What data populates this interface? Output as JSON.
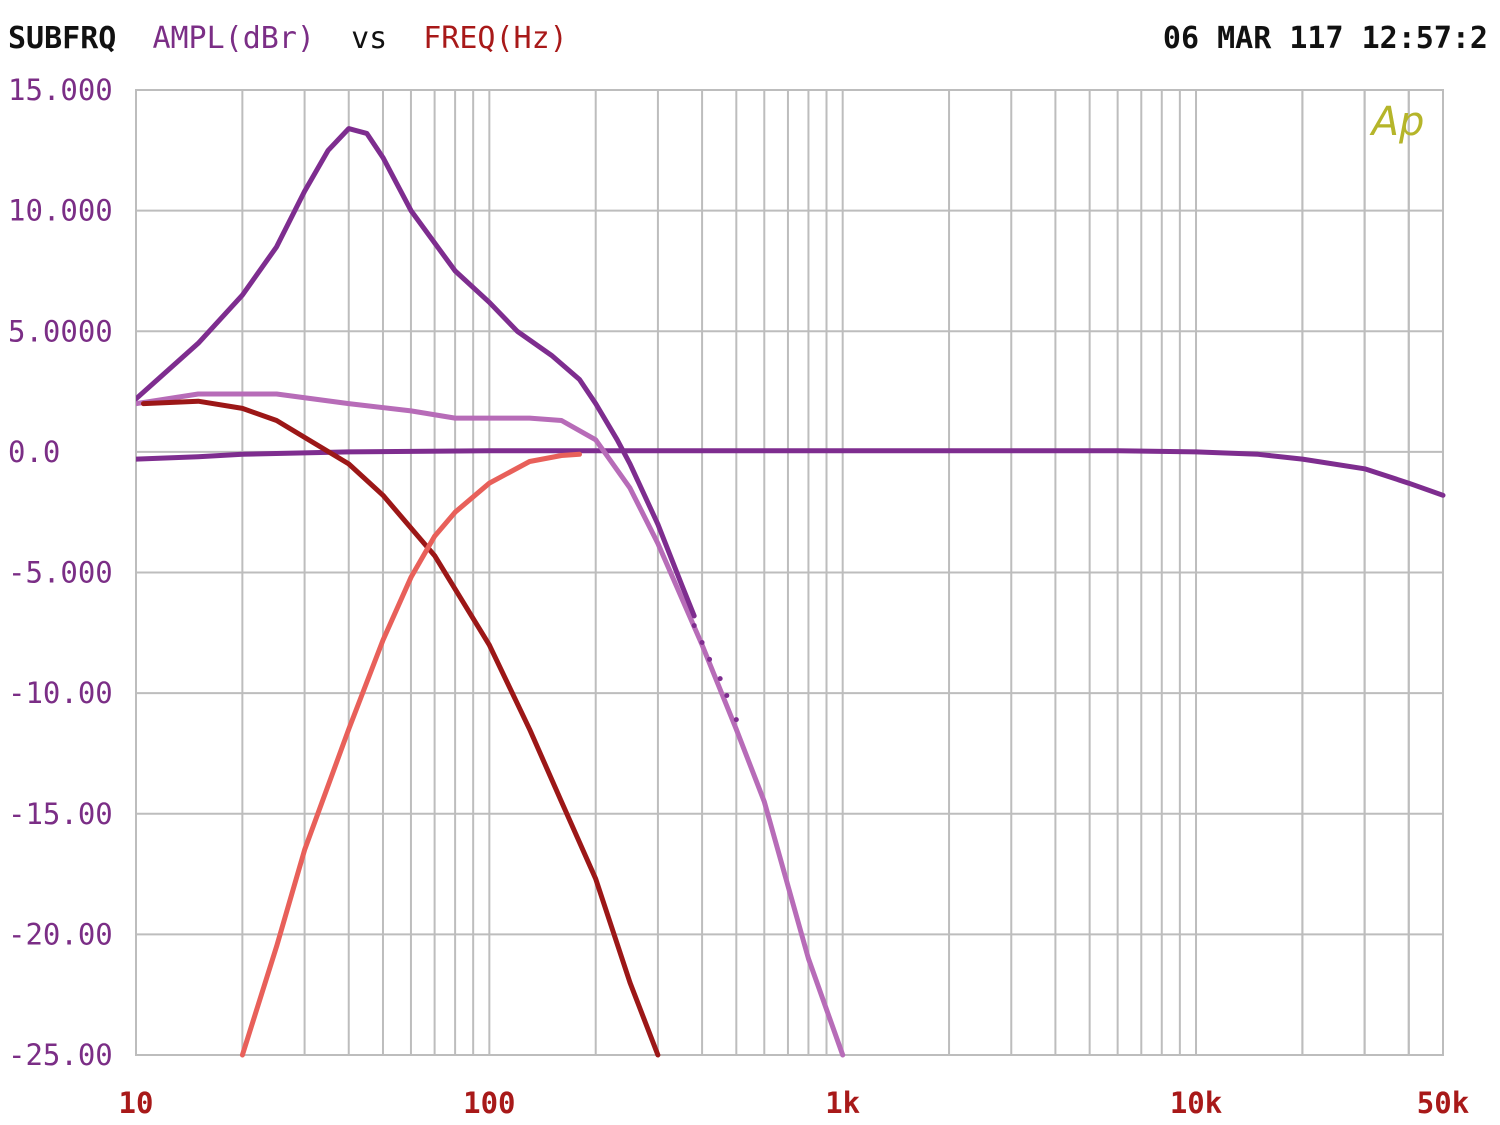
{
  "header": {
    "mode": "SUBFRQ",
    "y_label": "AMPL(dBr)",
    "vs": "vs",
    "x_label": "FREQ(Hz)",
    "timestamp": "06 MAR 117 12:57:2"
  },
  "logo": {
    "text": "Ap",
    "color": "#b5b52a"
  },
  "colors": {
    "background": "#ffffff",
    "grid": "#bdbdbd",
    "axis_text_y": "#7b2e86",
    "axis_text_x": "#a81919",
    "header_text": "#111111"
  },
  "chart_data": {
    "type": "line",
    "x_scale": "log",
    "xlim": [
      10,
      50000
    ],
    "ylim": [
      -25,
      15
    ],
    "grid": true,
    "x_tick_labels": [
      {
        "value": 10,
        "label": "10"
      },
      {
        "value": 100,
        "label": "100"
      },
      {
        "value": 1000,
        "label": "1k"
      },
      {
        "value": 10000,
        "label": "10k"
      },
      {
        "value": 50000,
        "label": "50k"
      }
    ],
    "y_tick_labels": [
      {
        "value": 15,
        "label": "15.000"
      },
      {
        "value": 10,
        "label": "10.000"
      },
      {
        "value": 5,
        "label": "5.0000"
      },
      {
        "value": 0,
        "label": "0.0"
      },
      {
        "value": -5,
        "label": "-5.000"
      },
      {
        "value": -10,
        "label": "-10.00"
      },
      {
        "value": -15,
        "label": "-15.00"
      },
      {
        "value": -20,
        "label": "-20.00"
      },
      {
        "value": -25,
        "label": "-25.00"
      }
    ],
    "series": [
      {
        "color": "#7e2d8f",
        "width": 5,
        "points": [
          [
            10,
            -0.3
          ],
          [
            15,
            -0.2
          ],
          [
            20,
            -0.1
          ],
          [
            40,
            0
          ],
          [
            100,
            0.05
          ],
          [
            200,
            0.05
          ],
          [
            1000,
            0.05
          ],
          [
            3000,
            0.05
          ],
          [
            6000,
            0.05
          ],
          [
            10000,
            0
          ],
          [
            15000,
            -0.1
          ],
          [
            20000,
            -0.3
          ],
          [
            30000,
            -0.7
          ],
          [
            40000,
            -1.3
          ],
          [
            50000,
            -1.8
          ]
        ]
      },
      {
        "color": "#b76cb8",
        "width": 5,
        "points": [
          [
            10,
            2
          ],
          [
            15,
            2.4
          ],
          [
            25,
            2.4
          ],
          [
            40,
            2
          ],
          [
            60,
            1.7
          ],
          [
            80,
            1.4
          ],
          [
            100,
            1.4
          ],
          [
            130,
            1.4
          ],
          [
            160,
            1.3
          ],
          [
            200,
            0.5
          ],
          [
            250,
            -1.5
          ],
          [
            300,
            -3.8
          ],
          [
            400,
            -8
          ],
          [
            500,
            -11.5
          ],
          [
            600,
            -14.5
          ],
          [
            800,
            -21
          ],
          [
            1000,
            -25
          ]
        ]
      },
      {
        "color": "#7e2d8f",
        "width": 5,
        "points": [
          [
            10,
            2.2
          ],
          [
            15,
            4.5
          ],
          [
            20,
            6.5
          ],
          [
            25,
            8.5
          ],
          [
            30,
            10.8
          ],
          [
            35,
            12.5
          ],
          [
            40,
            13.4
          ],
          [
            45,
            13.2
          ],
          [
            50,
            12.2
          ],
          [
            60,
            10
          ],
          [
            80,
            7.5
          ],
          [
            100,
            6.2
          ],
          [
            120,
            5
          ],
          [
            150,
            4
          ],
          [
            180,
            3
          ],
          [
            200,
            2
          ],
          [
            230,
            0.5
          ],
          [
            250,
            -0.5
          ],
          [
            300,
            -3
          ],
          [
            350,
            -5.5
          ],
          [
            380,
            -6.8
          ]
        ]
      },
      {
        "color": "#9c1717",
        "width": 5,
        "points": [
          [
            10.5,
            2
          ],
          [
            15,
            2.1
          ],
          [
            20,
            1.8
          ],
          [
            25,
            1.3
          ],
          [
            30,
            0.6
          ],
          [
            40,
            -0.5
          ],
          [
            50,
            -1.8
          ],
          [
            70,
            -4.3
          ],
          [
            100,
            -8
          ],
          [
            130,
            -11.5
          ],
          [
            160,
            -14.5
          ],
          [
            200,
            -17.7
          ],
          [
            250,
            -22
          ],
          [
            300,
            -25
          ]
        ]
      },
      {
        "color": "#e8605a",
        "width": 5,
        "points": [
          [
            20,
            -25
          ],
          [
            25,
            -20.5
          ],
          [
            30,
            -16.5
          ],
          [
            40,
            -11.5
          ],
          [
            50,
            -7.8
          ],
          [
            60,
            -5.2
          ],
          [
            70,
            -3.5
          ],
          [
            80,
            -2.5
          ],
          [
            100,
            -1.3
          ],
          [
            130,
            -0.4
          ],
          [
            160,
            -0.15
          ],
          [
            180,
            -0.1
          ]
        ]
      },
      {
        "color": "#7e2d8f",
        "width": 4,
        "style": "dots",
        "points": [
          [
            380,
            -7.2
          ],
          [
            400,
            -7.9
          ],
          [
            420,
            -8.6
          ],
          [
            450,
            -9.4
          ],
          [
            470,
            -10.1
          ],
          [
            500,
            -11.1
          ]
        ]
      }
    ]
  }
}
